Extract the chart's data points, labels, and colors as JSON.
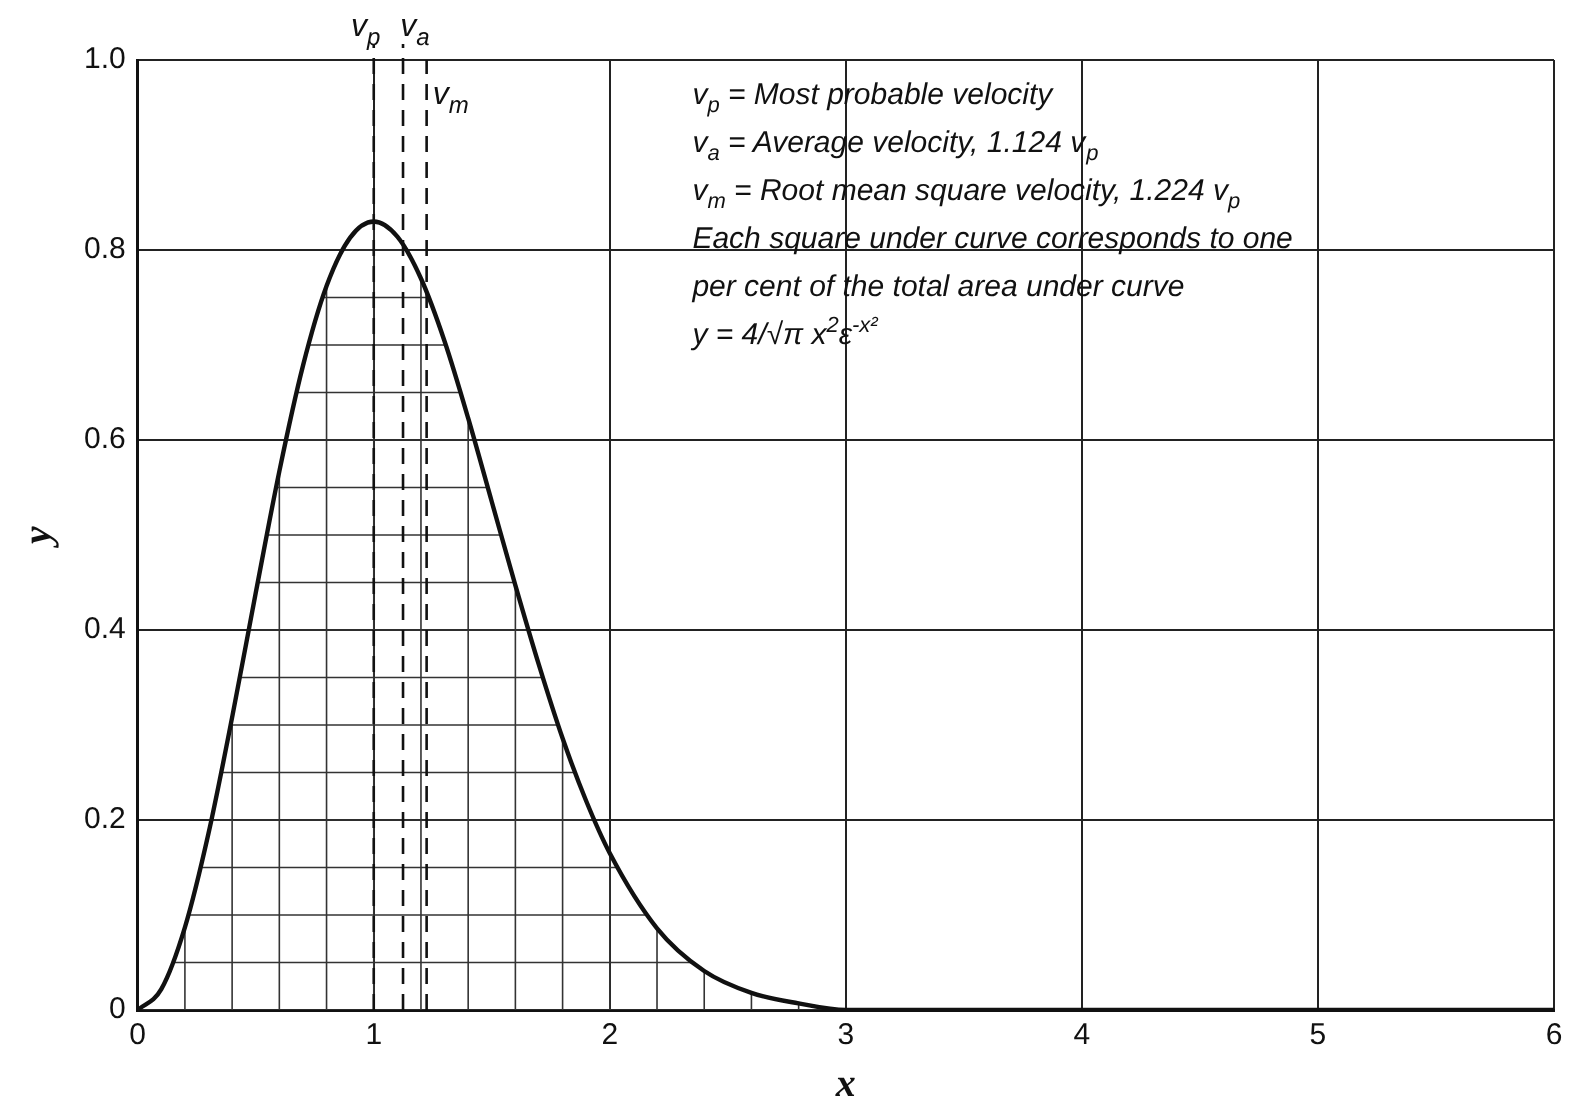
{
  "chart_data": {
    "type": "line",
    "xlabel": "x",
    "ylabel": "y",
    "x": [
      0,
      0.1,
      0.2,
      0.3,
      0.4,
      0.5,
      0.6,
      0.7,
      0.8,
      0.9,
      1.0,
      1.1,
      1.2,
      1.3,
      1.4,
      1.5,
      1.6,
      1.7,
      1.8,
      1.9,
      2.0,
      2.2,
      2.4,
      2.6,
      2.8,
      3.0,
      3.5,
      4,
      5,
      6
    ],
    "series": [
      {
        "color": "#111111",
        "values": [
          0,
          0.022,
          0.087,
          0.186,
          0.308,
          0.439,
          0.567,
          0.678,
          0.762,
          0.813,
          0.83,
          0.814,
          0.77,
          0.704,
          0.623,
          0.535,
          0.447,
          0.363,
          0.286,
          0.22,
          0.165,
          0.086,
          0.041,
          0.018,
          0.007,
          0,
          0,
          0,
          0,
          0
        ]
      }
    ],
    "xlim": [
      0,
      6
    ],
    "xticks": [
      0,
      1,
      2,
      3,
      4,
      5,
      6
    ],
    "ylim": [
      0,
      1
    ],
    "yticks": [
      0,
      0.2,
      0.4,
      0.6,
      0.8,
      {
        "value": 1,
        "label": "1.0"
      }
    ],
    "grid": true,
    "legend": false,
    "ref_lines": [
      {
        "axis": "x",
        "value": 1,
        "label": "v$_{p}$",
        "line_style": "dashed"
      },
      {
        "axis": "x",
        "value": 1.124,
        "label": "v$_{a}$",
        "line_style": "dashed"
      },
      {
        "axis": "x",
        "value": 1.224,
        "label": "v$_{m}$",
        "line_style": "dashed"
      }
    ],
    "annotations": [
      "v$_{p}$ = Most probable velocity",
      "v$_{a}$ = Average velocity, 1.124 v$_{p}$",
      "v$_{m}$ = Root mean square velocity, 1.224 v$_{p}$",
      "Each square under curve corresponds to one",
      "per cent of the total area under curve",
      "y = 4/√π x$^{2}$ε$^{-x²}$"
    ]
  }
}
